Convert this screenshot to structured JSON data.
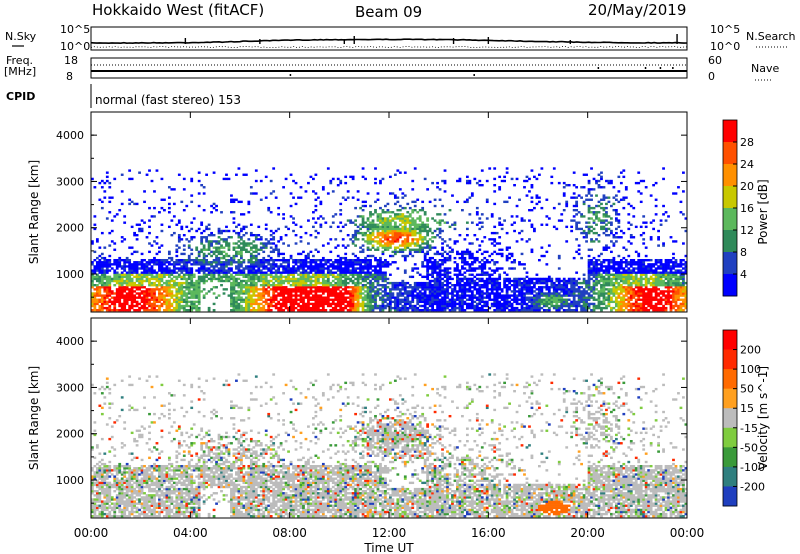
{
  "header": {
    "site": "Hokkaido West (fitACF)",
    "beam": "Beam 09",
    "date": "20/May/2019"
  },
  "top_panels": {
    "nsky_label": "N.Sky",
    "nsearch_label": "N.Search",
    "noise_ticks_left": [
      "10^5",
      "10^0"
    ],
    "noise_ticks_right": [
      "10^5",
      "10^0"
    ],
    "freq_label": "Freq.",
    "freq_unit": "[MHz]",
    "freq_ticks": [
      "18",
      "8"
    ],
    "nave_label": "Nave",
    "nave_ticks": [
      "60",
      "0"
    ],
    "cpid_label": "CPID",
    "cpid_text": "normal (fast stereo) 153"
  },
  "chart_data": [
    {
      "type": "heatmap",
      "name": "power",
      "ylabel": "Slant Range [km]",
      "yticks": [
        "1000",
        "2000",
        "3000",
        "4000"
      ],
      "ylim": [
        180,
        4500
      ],
      "xlim": [
        0,
        24
      ],
      "colorbar": {
        "label": "Power [dB]",
        "ticks": [
          "4",
          "8",
          "12",
          "16",
          "20",
          "24",
          "28"
        ],
        "colors": [
          "#0000ff",
          "#2040c0",
          "#2f8a5a",
          "#5cb85c",
          "#c8c800",
          "#ff9000",
          "#ff5000",
          "#ff0000"
        ]
      }
    },
    {
      "type": "heatmap",
      "name": "velocity",
      "ylabel": "Slant Range [km]",
      "yticks": [
        "1000",
        "2000",
        "3000",
        "4000"
      ],
      "ylim": [
        180,
        4500
      ],
      "xlim": [
        0,
        24
      ],
      "colorbar": {
        "label": "Velocity [m s^-1]",
        "ticks": [
          "200",
          "100",
          "50",
          "15",
          "-15",
          "-50",
          "-100",
          "-200"
        ],
        "colors": [
          "#1f3fbf",
          "#2f7f7f",
          "#3a9a3a",
          "#7fcc3f",
          "#bcbcbc",
          "#ffa020",
          "#ff6a00",
          "#ff2a00",
          "#ff0000"
        ]
      }
    }
  ],
  "xaxis": {
    "label": "Time UT",
    "ticks": [
      "00:00",
      "04:00",
      "08:00",
      "12:00",
      "16:00",
      "20:00",
      "00:00"
    ]
  }
}
